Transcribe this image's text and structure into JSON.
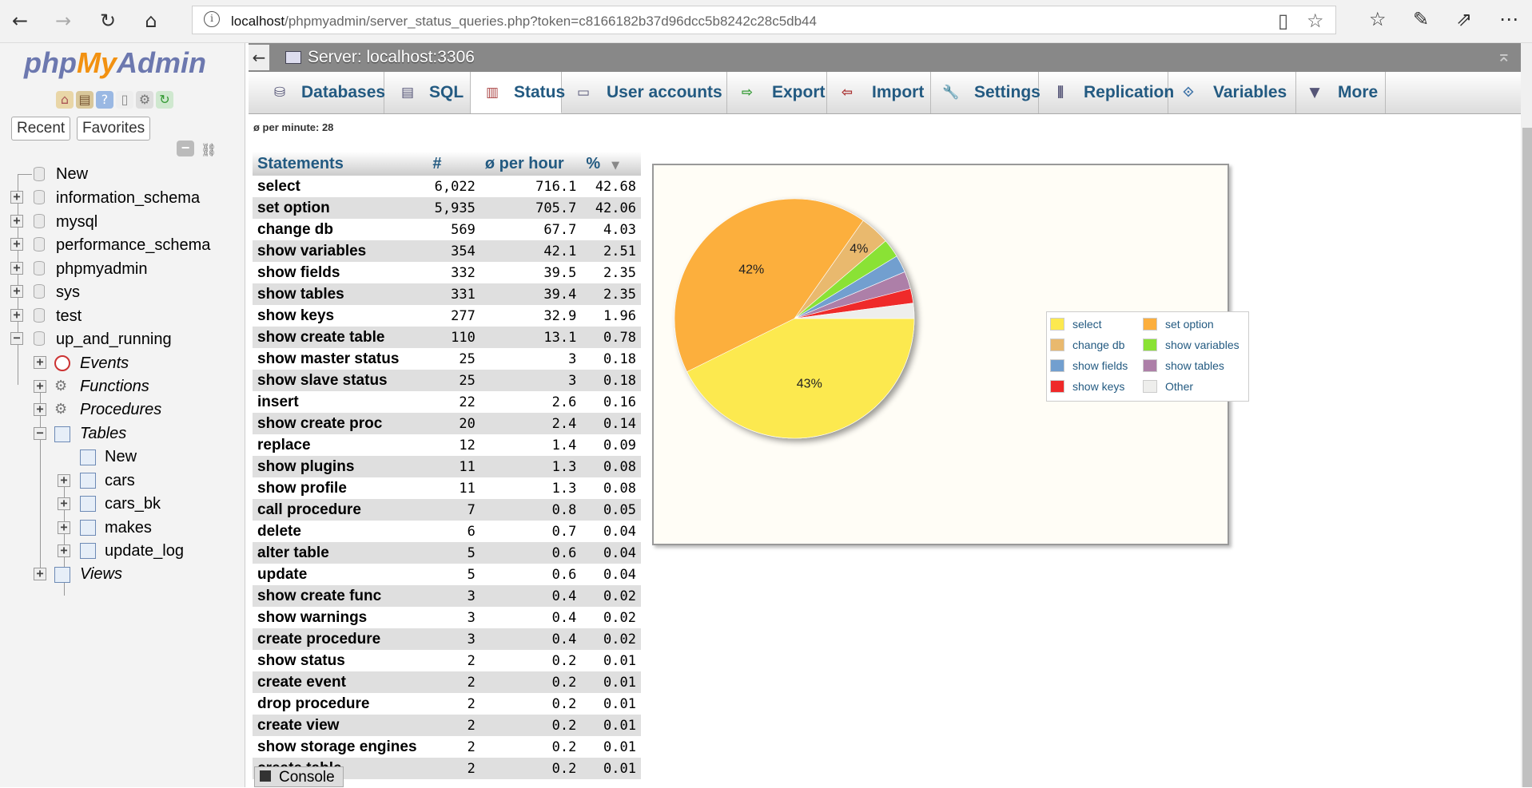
{
  "browser": {
    "url_host": "localhost",
    "url_path": "/phpmyadmin/server_status_queries.php?token=c8166182b37d96dcc5b8242c28c5db44"
  },
  "nav": {
    "logo_php": "php",
    "logo_my": "My",
    "logo_admin": "Admin",
    "tab_recent": "Recent",
    "tab_favorites": "Favorites",
    "databases": [
      "New",
      "information_schema",
      "mysql",
      "performance_schema",
      "phpmyadmin",
      "sys",
      "test",
      "up_and_running"
    ],
    "db_children": [
      "Events",
      "Functions",
      "Procedures",
      "Tables"
    ],
    "tables": [
      "New",
      "cars",
      "cars_bk",
      "makes",
      "update_log"
    ],
    "views": "Views"
  },
  "server": {
    "title": "Server: localhost:3306"
  },
  "menu": {
    "tabs": [
      "Databases",
      "SQL",
      "Status",
      "User accounts",
      "Export",
      "Import",
      "Settings",
      "Replication",
      "Variables",
      "More"
    ],
    "active": "Status"
  },
  "per_minute": "ø per minute: 28",
  "table": {
    "headers": [
      "Statements",
      "#",
      "ø per hour",
      "%"
    ],
    "rows": [
      [
        "select",
        "6,022",
        "716.1",
        "42.68"
      ],
      [
        "set option",
        "5,935",
        "705.7",
        "42.06"
      ],
      [
        "change db",
        "569",
        "67.7",
        "4.03"
      ],
      [
        "show variables",
        "354",
        "42.1",
        "2.51"
      ],
      [
        "show fields",
        "332",
        "39.5",
        "2.35"
      ],
      [
        "show tables",
        "331",
        "39.4",
        "2.35"
      ],
      [
        "show keys",
        "277",
        "32.9",
        "1.96"
      ],
      [
        "show create table",
        "110",
        "13.1",
        "0.78"
      ],
      [
        "show master status",
        "25",
        "3",
        "0.18"
      ],
      [
        "show slave status",
        "25",
        "3",
        "0.18"
      ],
      [
        "insert",
        "22",
        "2.6",
        "0.16"
      ],
      [
        "show create proc",
        "20",
        "2.4",
        "0.14"
      ],
      [
        "replace",
        "12",
        "1.4",
        "0.09"
      ],
      [
        "show plugins",
        "11",
        "1.3",
        "0.08"
      ],
      [
        "show profile",
        "11",
        "1.3",
        "0.08"
      ],
      [
        "call procedure",
        "7",
        "0.8",
        "0.05"
      ],
      [
        "delete",
        "6",
        "0.7",
        "0.04"
      ],
      [
        "alter table",
        "5",
        "0.6",
        "0.04"
      ],
      [
        "update",
        "5",
        "0.6",
        "0.04"
      ],
      [
        "show create func",
        "3",
        "0.4",
        "0.02"
      ],
      [
        "show warnings",
        "3",
        "0.4",
        "0.02"
      ],
      [
        "create procedure",
        "3",
        "0.4",
        "0.02"
      ],
      [
        "show status",
        "2",
        "0.2",
        "0.01"
      ],
      [
        "create event",
        "2",
        "0.2",
        "0.01"
      ],
      [
        "drop procedure",
        "2",
        "0.2",
        "0.01"
      ],
      [
        "create view",
        "2",
        "0.2",
        "0.01"
      ],
      [
        "show storage engines",
        "2",
        "0.2",
        "0.01"
      ],
      [
        "create table",
        "2",
        "0.2",
        "0.01"
      ]
    ]
  },
  "chart_data": {
    "type": "pie",
    "slices": [
      {
        "name": "select",
        "value": 42.68,
        "color": "#fce94f",
        "label": "43%"
      },
      {
        "name": "set option",
        "value": 42.06,
        "color": "#fcaf3e",
        "label": "42%"
      },
      {
        "name": "change db",
        "value": 4.03,
        "color": "#e9b96e",
        "label": "4%"
      },
      {
        "name": "show variables",
        "value": 2.51,
        "color": "#8ae234",
        "label": ""
      },
      {
        "name": "show fields",
        "value": 2.35,
        "color": "#729fcf",
        "label": ""
      },
      {
        "name": "show tables",
        "value": 2.35,
        "color": "#ad7fa8",
        "label": ""
      },
      {
        "name": "show keys",
        "value": 1.96,
        "color": "#ef2929",
        "label": ""
      },
      {
        "name": "Other",
        "value": 2.06,
        "color": "#eeeeec",
        "label": ""
      }
    ],
    "legend": [
      "select",
      "set option",
      "change db",
      "show variables",
      "show fields",
      "show tables",
      "show keys",
      "Other"
    ],
    "legend_position": "right"
  },
  "console_label": "Console"
}
